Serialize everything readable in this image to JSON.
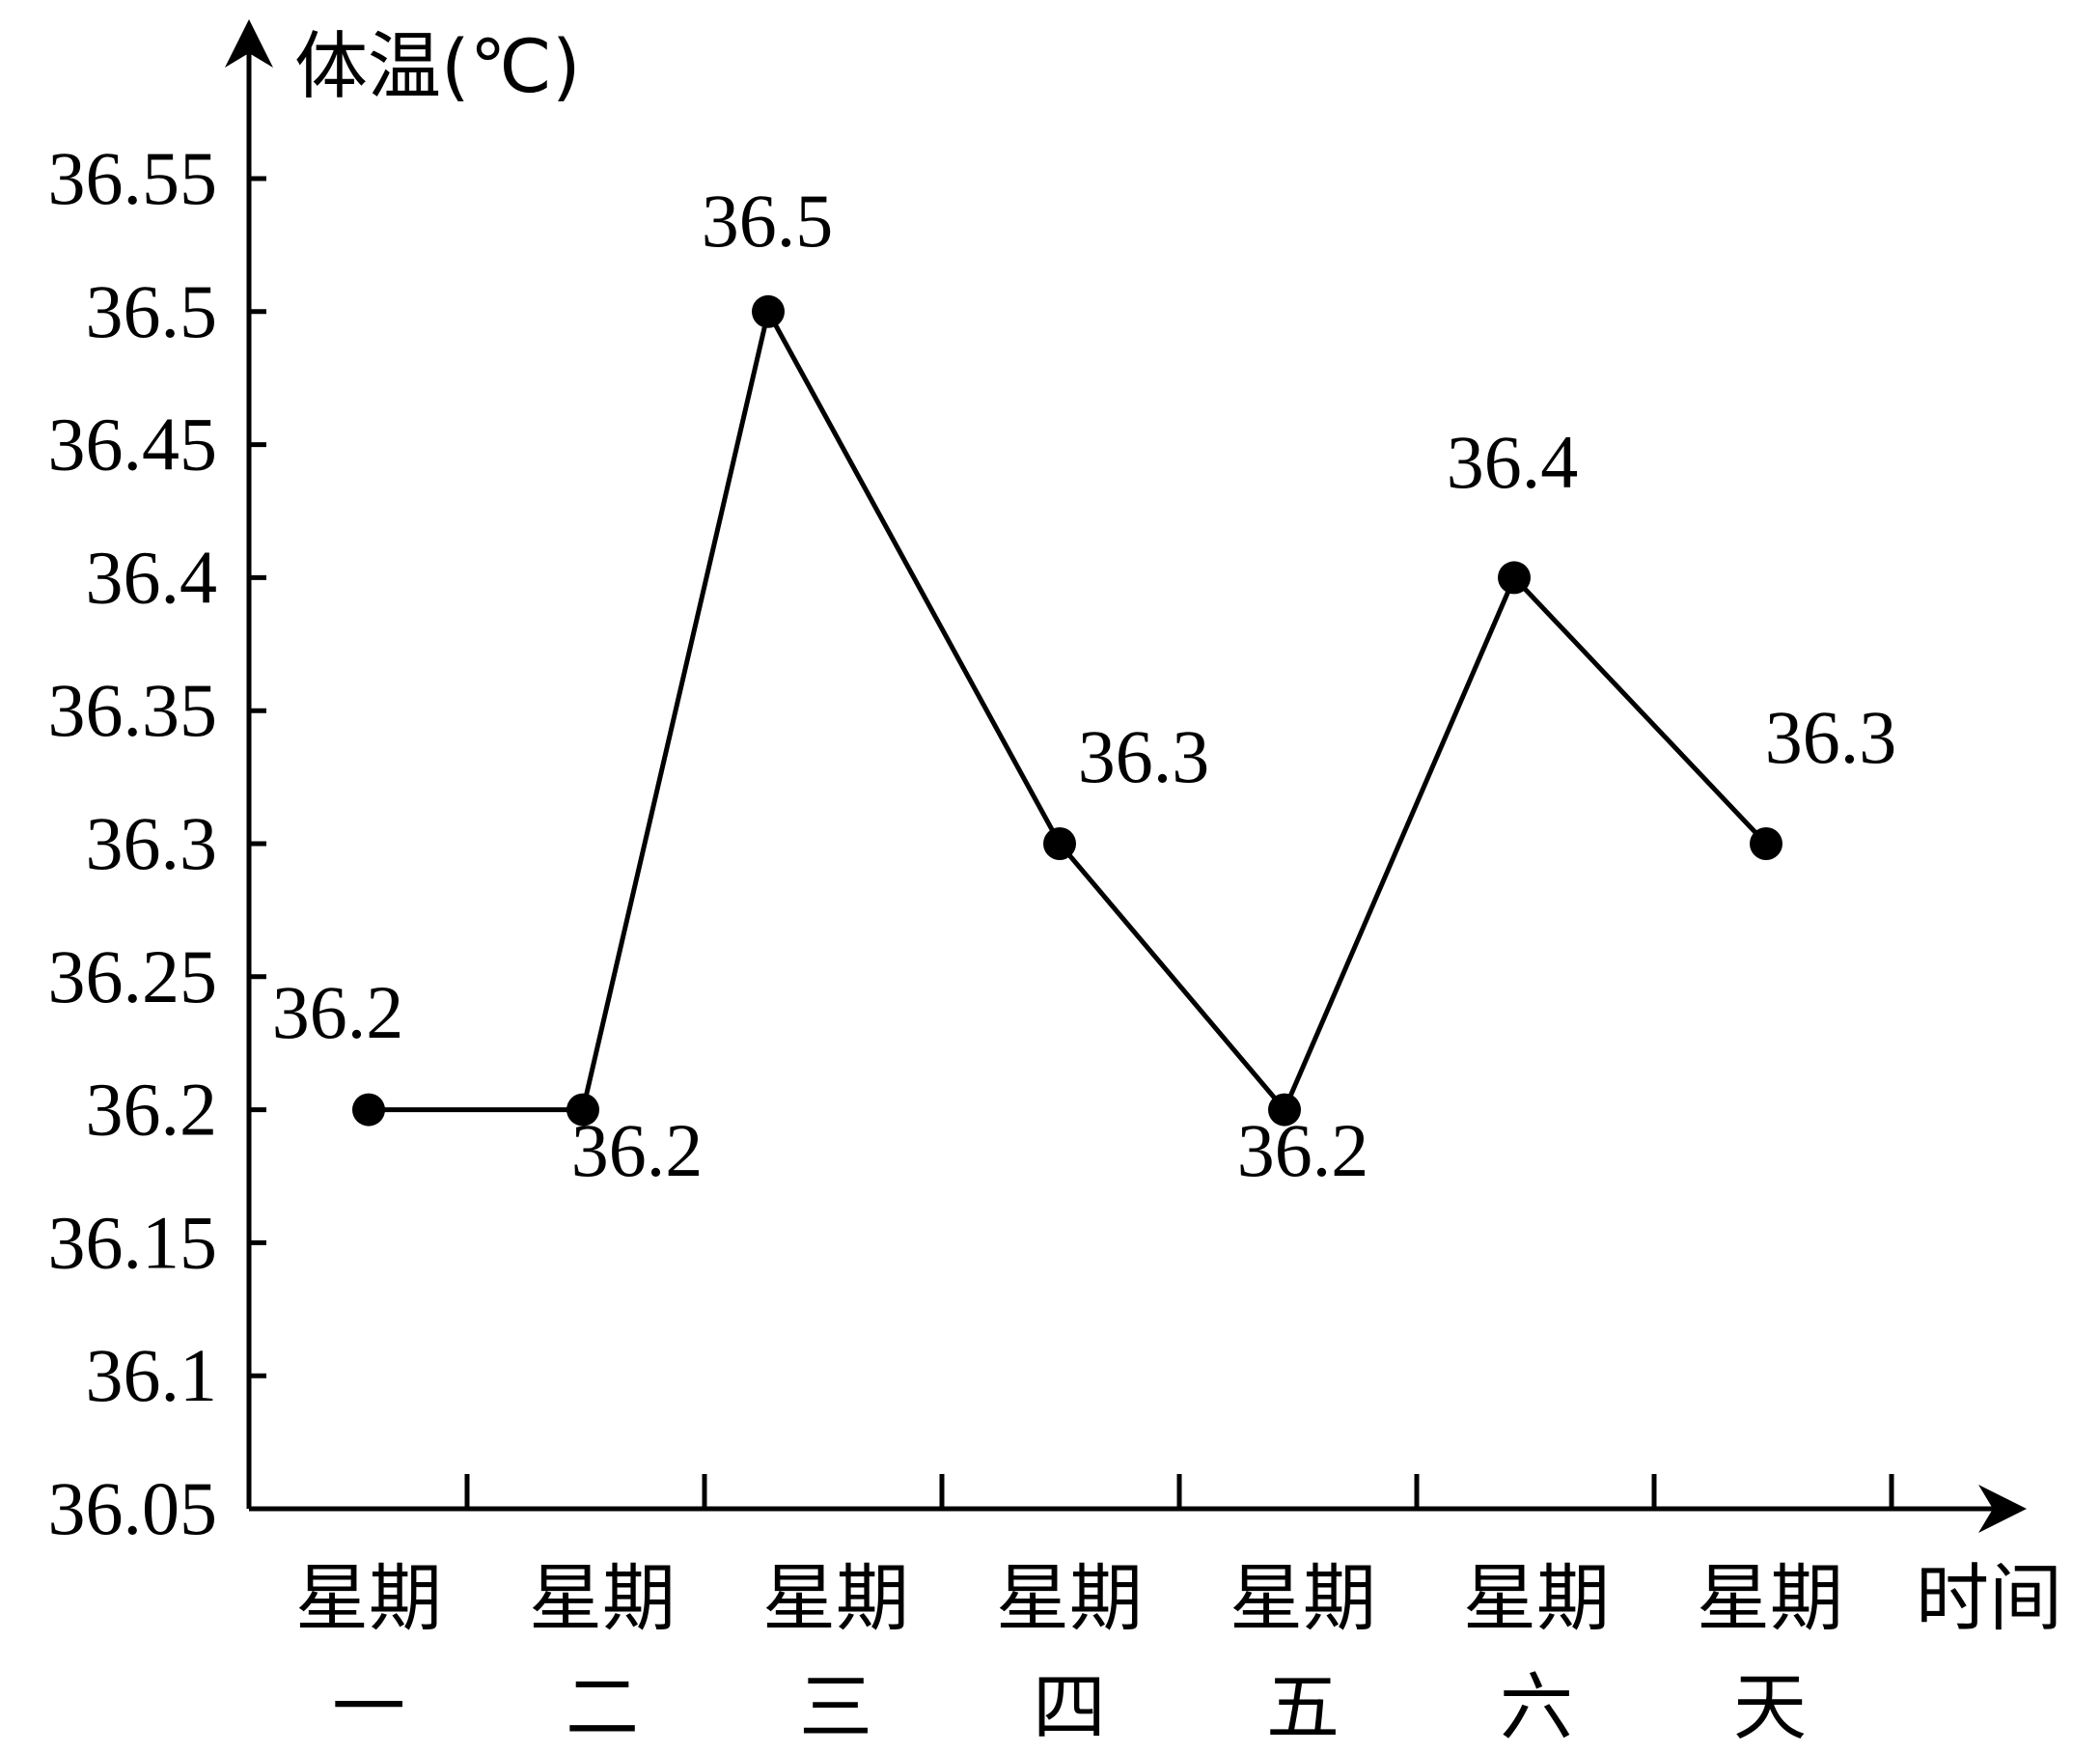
{
  "chart_data": {
    "type": "line",
    "title": "",
    "ylabel": "体温(℃)",
    "xlabel": "时间",
    "categories": [
      [
        "星期",
        "一"
      ],
      [
        "星期",
        "二"
      ],
      [
        "星期",
        "三"
      ],
      [
        "星期",
        "四"
      ],
      [
        "星期",
        "五"
      ],
      [
        "星期",
        "六"
      ],
      [
        "星期",
        "天"
      ]
    ],
    "values": [
      36.2,
      36.2,
      36.5,
      36.3,
      36.2,
      36.4,
      36.3
    ],
    "data_labels": [
      "36.2",
      "36.2",
      "36.5",
      "36.3",
      "36.2",
      "36.4",
      "36.3"
    ],
    "y_ticks": [
      36.05,
      36.1,
      36.15,
      36.2,
      36.25,
      36.3,
      36.35,
      36.4,
      36.45,
      36.5,
      36.55
    ],
    "y_tick_labels": [
      "36.05",
      "36.1",
      "36.15",
      "36.2",
      "36.25",
      "36.3",
      "36.35",
      "36.4",
      "36.45",
      "36.5",
      "36.55"
    ],
    "grid": false,
    "legend": "none",
    "colors": {
      "line": "#000000",
      "marker": "#000000",
      "axis": "#000000"
    }
  }
}
